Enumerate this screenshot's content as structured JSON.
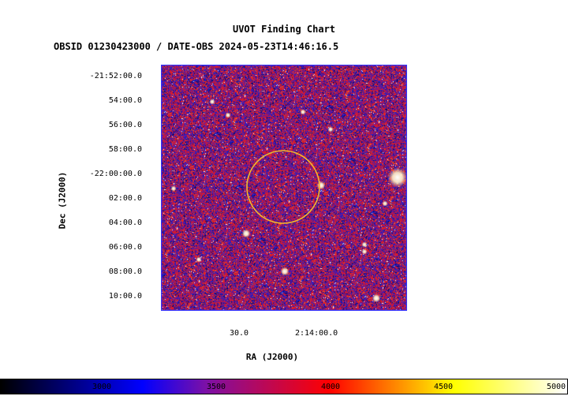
{
  "title": "UVOT Finding Chart",
  "subtitle": "OBSID 01230423000 / DATE-OBS 2024-05-23T14:46:16.5",
  "axes": {
    "ylabel": "Dec (J2000)",
    "xlabel": "RA (J2000)",
    "dec_ticks": [
      "-21:52:00.0",
      "54:00.0",
      "56:00.0",
      "58:00.0",
      "-22:00:00.0",
      "02:00.0",
      "04:00.0",
      "06:00.0",
      "08:00.0",
      "10:00.0"
    ],
    "ra_ticks": [
      "30.0",
      "2:14:00.0"
    ]
  },
  "colorbar": {
    "ticks": [
      "3000",
      "3500",
      "4000",
      "4500",
      "5000"
    ],
    "colors": [
      "#000000",
      "#0000ff",
      "#ff0000",
      "#ffff00",
      "#ffffff"
    ]
  },
  "region": {
    "shape": "circle",
    "color": "#f2b82e"
  },
  "frame_color": "#3333ff"
}
